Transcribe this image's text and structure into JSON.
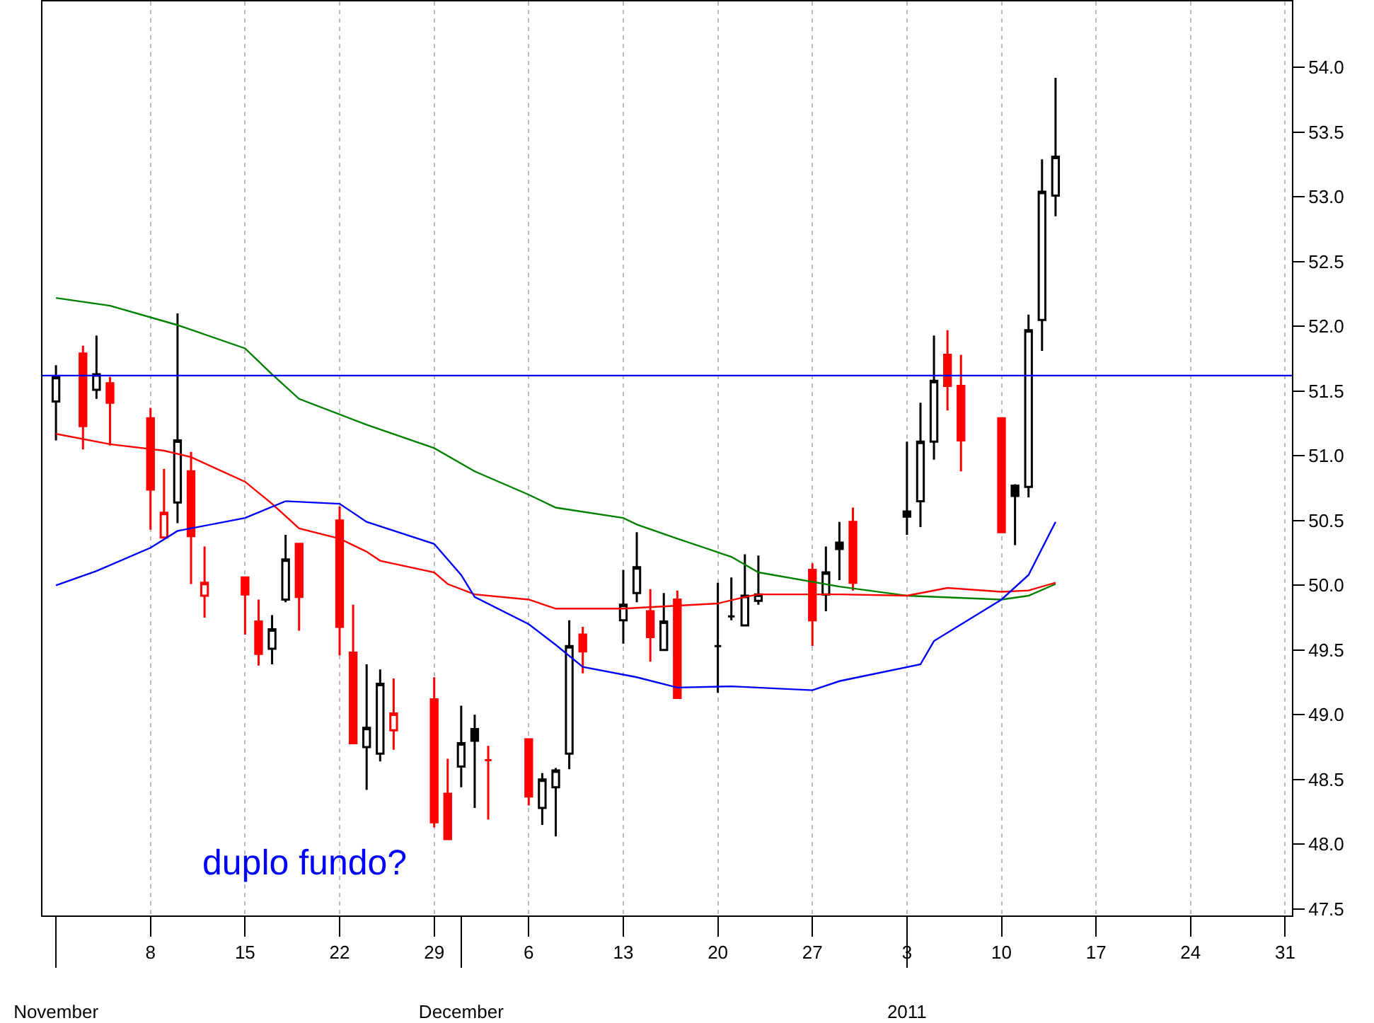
{
  "chart_data": {
    "type": "candlestick",
    "x": [
      "2010-11-01",
      "2010-11-03",
      "2010-11-04",
      "2010-11-05",
      "2010-11-08",
      "2010-11-09",
      "2010-11-10",
      "2010-11-11",
      "2010-11-12",
      "2010-11-15",
      "2010-11-16",
      "2010-11-17",
      "2010-11-18",
      "2010-11-19",
      "2010-11-22",
      "2010-11-23",
      "2010-11-24",
      "2010-11-25",
      "2010-11-26",
      "2010-11-29",
      "2010-11-30",
      "2010-12-01",
      "2010-12-02",
      "2010-12-03",
      "2010-12-06",
      "2010-12-07",
      "2010-12-08",
      "2010-12-09",
      "2010-12-10",
      "2010-12-13",
      "2010-12-14",
      "2010-12-15",
      "2010-12-16",
      "2010-12-17",
      "2010-12-20",
      "2010-12-21",
      "2010-12-22",
      "2010-12-23",
      "2010-12-27",
      "2010-12-28",
      "2010-12-29",
      "2010-12-30",
      "2011-01-03",
      "2011-01-04",
      "2011-01-05",
      "2011-01-06",
      "2011-01-07",
      "2011-01-10",
      "2011-01-11",
      "2011-01-12",
      "2011-01-13",
      "2011-01-14"
    ],
    "ohlc": [
      [
        51.42,
        51.7,
        51.12,
        51.61
      ],
      [
        51.79,
        51.85,
        51.05,
        51.23
      ],
      [
        51.51,
        51.93,
        51.44,
        51.63
      ],
      [
        51.56,
        51.61,
        51.08,
        51.41
      ],
      [
        51.29,
        51.37,
        50.43,
        50.74
      ],
      [
        50.37,
        50.9,
        50.37,
        50.56
      ],
      [
        50.64,
        52.1,
        50.48,
        51.12
      ],
      [
        50.88,
        51.03,
        50.01,
        50.38
      ],
      [
        49.92,
        50.3,
        49.75,
        50.02
      ],
      [
        50.06,
        50.06,
        49.62,
        49.93
      ],
      [
        49.72,
        49.89,
        49.38,
        49.47
      ],
      [
        49.51,
        49.77,
        49.39,
        49.66
      ],
      [
        49.89,
        50.39,
        49.87,
        50.2
      ],
      [
        50.32,
        50.32,
        49.65,
        49.91
      ],
      [
        50.5,
        50.61,
        49.46,
        49.68
      ],
      [
        49.48,
        49.85,
        48.78,
        48.78
      ],
      [
        48.75,
        49.39,
        48.42,
        48.9
      ],
      [
        48.7,
        49.35,
        48.64,
        49.24
      ],
      [
        48.88,
        49.28,
        48.73,
        49.01
      ],
      [
        49.12,
        49.29,
        48.13,
        48.17
      ],
      [
        48.39,
        48.66,
        48.04,
        48.04
      ],
      [
        48.6,
        49.07,
        48.44,
        48.78
      ],
      [
        48.89,
        49.0,
        48.28,
        48.8
      ],
      [
        48.65,
        48.76,
        48.19,
        48.65
      ],
      [
        48.81,
        48.81,
        48.3,
        48.37
      ],
      [
        48.28,
        48.55,
        48.15,
        48.5
      ],
      [
        48.44,
        48.59,
        48.06,
        48.57
      ],
      [
        48.7,
        49.73,
        48.58,
        49.53
      ],
      [
        49.62,
        49.68,
        49.32,
        49.49
      ],
      [
        49.73,
        50.12,
        49.55,
        49.85
      ],
      [
        49.94,
        50.41,
        49.87,
        50.14
      ],
      [
        49.8,
        49.97,
        49.41,
        49.6
      ],
      [
        49.5,
        49.94,
        49.5,
        49.72
      ],
      [
        49.89,
        49.96,
        49.13,
        49.13
      ],
      [
        49.53,
        50.02,
        49.17,
        49.53
      ],
      [
        49.76,
        50.06,
        49.73,
        49.76
      ],
      [
        49.69,
        50.24,
        49.69,
        49.92
      ],
      [
        49.88,
        50.23,
        49.85,
        49.93
      ],
      [
        50.12,
        50.17,
        49.53,
        49.73
      ],
      [
        49.93,
        50.3,
        49.8,
        50.1
      ],
      [
        50.33,
        50.49,
        50.04,
        50.28
      ],
      [
        50.49,
        50.6,
        49.96,
        50.02
      ],
      [
        50.57,
        51.11,
        50.39,
        50.53
      ],
      [
        50.65,
        51.41,
        50.45,
        51.11
      ],
      [
        51.11,
        51.93,
        50.97,
        51.58
      ],
      [
        51.78,
        51.97,
        51.35,
        51.54
      ],
      [
        51.54,
        51.78,
        50.88,
        51.12
      ],
      [
        51.29,
        51.29,
        50.41,
        50.41
      ],
      [
        50.77,
        50.78,
        50.31,
        50.69
      ],
      [
        50.76,
        52.09,
        50.68,
        51.97
      ],
      [
        52.05,
        53.29,
        51.81,
        53.04
      ],
      [
        53.01,
        53.92,
        52.85,
        53.31
      ]
    ],
    "colors": [
      "#000000",
      "#ff0000",
      "#000000",
      "#ff0000",
      "#ff0000",
      "#ff0000",
      "#000000",
      "#ff0000",
      "#ff0000",
      "#ff0000",
      "#ff0000",
      "#000000",
      "#000000",
      "#ff0000",
      "#ff0000",
      "#ff0000",
      "#000000",
      "#000000",
      "#ff0000",
      "#ff0000",
      "#ff0000",
      "#000000",
      "#000000",
      "#ff0000",
      "#ff0000",
      "#000000",
      "#000000",
      "#000000",
      "#ff0000",
      "#000000",
      "#000000",
      "#ff0000",
      "#000000",
      "#ff0000",
      "#000000",
      "#000000",
      "#000000",
      "#000000",
      "#ff0000",
      "#000000",
      "#000000",
      "#ff0000",
      "#000000",
      "#000000",
      "#000000",
      "#ff0000",
      "#ff0000",
      "#ff0000",
      "#000000",
      "#000000",
      "#000000",
      "#000000"
    ],
    "series": [
      {
        "type": "line",
        "color": "#008000",
        "x": [
          "2010-11-01",
          "2010-11-05",
          "2010-11-10",
          "2010-11-15",
          "2010-11-17",
          "2010-11-19",
          "2010-11-24",
          "2010-11-29",
          "2010-12-02",
          "2010-12-06",
          "2010-12-08",
          "2010-12-13",
          "2010-12-14",
          "2010-12-17",
          "2010-12-21",
          "2010-12-23",
          "2010-12-29",
          "2011-01-03",
          "2011-01-10",
          "2011-01-12",
          "2011-01-14"
        ],
        "values": [
          52.22,
          52.16,
          52.01,
          51.83,
          51.63,
          51.44,
          51.24,
          51.06,
          50.88,
          50.7,
          50.6,
          50.52,
          50.47,
          50.36,
          50.22,
          50.1,
          49.99,
          49.92,
          49.89,
          49.92,
          50.01
        ]
      },
      {
        "type": "line",
        "color": "#ff0000",
        "x": [
          "2010-11-01",
          "2010-11-05",
          "2010-11-09",
          "2010-11-11",
          "2010-11-15",
          "2010-11-17",
          "2010-11-19",
          "2010-11-22",
          "2010-11-24",
          "2010-11-25",
          "2010-11-29",
          "2010-11-30",
          "2010-12-02",
          "2010-12-06",
          "2010-12-08",
          "2010-12-13",
          "2010-12-20",
          "2010-12-22",
          "2010-12-23",
          "2010-12-29",
          "2011-01-03",
          "2011-01-06",
          "2011-01-10",
          "2011-01-12",
          "2011-01-14"
        ],
        "values": [
          51.17,
          51.09,
          51.04,
          50.99,
          50.8,
          50.63,
          50.44,
          50.36,
          50.26,
          50.19,
          50.1,
          50.01,
          49.93,
          49.89,
          49.82,
          49.82,
          49.86,
          49.91,
          49.93,
          49.93,
          49.92,
          49.98,
          49.95,
          49.96,
          50.02
        ]
      },
      {
        "type": "line",
        "color": "#0000ff",
        "x": [
          "2010-11-01",
          "2010-11-04",
          "2010-11-08",
          "2010-11-10",
          "2010-11-15",
          "2010-11-18",
          "2010-11-22",
          "2010-11-24",
          "2010-11-29",
          "2010-12-01",
          "2010-12-02",
          "2010-12-06",
          "2010-12-08",
          "2010-12-10",
          "2010-12-14",
          "2010-12-17",
          "2010-12-21",
          "2010-12-27",
          "2010-12-29",
          "2011-01-04",
          "2011-01-05",
          "2011-01-10",
          "2011-01-12",
          "2011-01-14"
        ],
        "values": [
          50.0,
          50.11,
          50.29,
          50.42,
          50.52,
          50.65,
          50.63,
          50.49,
          50.32,
          50.08,
          49.91,
          49.7,
          49.54,
          49.37,
          49.29,
          49.21,
          49.22,
          49.19,
          49.26,
          49.39,
          49.57,
          49.89,
          50.08,
          50.49
        ]
      }
    ],
    "ref_lines": [
      {
        "axis": "y",
        "value": 51.62,
        "color": "#0000ff"
      }
    ],
    "annotations": [
      "duplo fundo?"
    ],
    "xlim": [
      "2010-10-31T00:00",
      "2011-01-31T12:00"
    ],
    "xticks": [
      {
        "value": "2010-11-08",
        "label": "8"
      },
      {
        "value": "2010-11-15",
        "label": "15"
      },
      {
        "value": "2010-11-22",
        "label": "22"
      },
      {
        "value": "2010-11-29",
        "label": "29"
      },
      {
        "value": "2010-12-06",
        "label": "6"
      },
      {
        "value": "2010-12-13",
        "label": "13"
      },
      {
        "value": "2010-12-20",
        "label": "20"
      },
      {
        "value": "2010-12-27",
        "label": "27"
      },
      {
        "value": "2011-01-03",
        "label": "3"
      },
      {
        "value": "2011-01-10",
        "label": "10"
      },
      {
        "value": "2011-01-17",
        "label": "17"
      },
      {
        "value": "2011-01-24",
        "label": "24"
      },
      {
        "value": "2011-01-31",
        "label": "31"
      }
    ],
    "x2lim": [
      "2010-10-31T00:00",
      "2011-01-31T12:00"
    ],
    "x2ticks": [
      {
        "value": "2010-11-01",
        "label": "November"
      },
      {
        "value": "2010-12-01",
        "label": "December"
      },
      {
        "value": "2011-01-03",
        "label": "2011"
      }
    ],
    "ylim": [
      47.45,
      54.51
    ],
    "yticks": [
      {
        "value": 47.5,
        "label": "47.5"
      },
      {
        "value": 48,
        "label": "48.0"
      },
      {
        "value": 48.5,
        "label": "48.5"
      },
      {
        "value": 49,
        "label": "49.0"
      },
      {
        "value": 49.5,
        "label": "49.5"
      },
      {
        "value": 50,
        "label": "50.0"
      },
      {
        "value": 50.5,
        "label": "50.5"
      },
      {
        "value": 51,
        "label": "51.0"
      },
      {
        "value": 51.5,
        "label": "51.5"
      },
      {
        "value": 52,
        "label": "52.0"
      },
      {
        "value": 52.5,
        "label": "52.5"
      },
      {
        "value": 53,
        "label": "53.0"
      },
      {
        "value": 53.5,
        "label": "53.5"
      },
      {
        "value": 54,
        "label": "54.0"
      }
    ],
    "grid": "x"
  }
}
